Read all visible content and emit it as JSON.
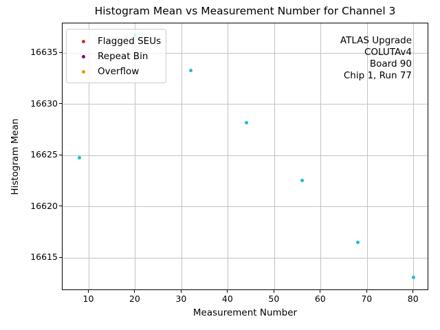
{
  "window": {
    "background": "#ffffff"
  },
  "title": "Histogram Mean vs Measurement Number for Channel 3",
  "annotation": {
    "lines": [
      "ATLAS Upgrade",
      "COLUTAv4",
      "Board 90",
      "Chip 1, Run 77"
    ]
  },
  "chart_data": {
    "type": "scatter",
    "title": "Histogram Mean vs Measurement Number for Channel 3",
    "xlabel": "Measurement Number",
    "ylabel": "Histogram Mean",
    "xlim": [
      4.3,
      83.3
    ],
    "ylim": [
      16611.8,
      16637.9
    ],
    "x_ticks": [
      10,
      20,
      30,
      40,
      50,
      60,
      70,
      80
    ],
    "y_ticks": [
      16615,
      16620,
      16625,
      16630,
      16635
    ],
    "grid": true,
    "legend_position": "upper left",
    "series": [
      {
        "name": "Histogram Mean",
        "color": "#17becf",
        "marker_size_px": 5,
        "points": [
          [
            8,
            16624.8
          ],
          [
            20,
            16636.7
          ],
          [
            32,
            16633.3
          ],
          [
            44,
            16628.2
          ],
          [
            56,
            16622.6
          ],
          [
            68,
            16616.5
          ],
          [
            80,
            16613.1
          ]
        ]
      }
    ],
    "legend": {
      "items": [
        {
          "label": "Flagged SEUs",
          "color": "#d62728"
        },
        {
          "label": "Repeat Bin",
          "color": "#800080"
        },
        {
          "label": "Overflow",
          "color": "#ff8c00"
        }
      ]
    },
    "colors": {
      "grid": "#c3c3c3",
      "spine": "#000000",
      "data_point": "#17becf"
    }
  }
}
